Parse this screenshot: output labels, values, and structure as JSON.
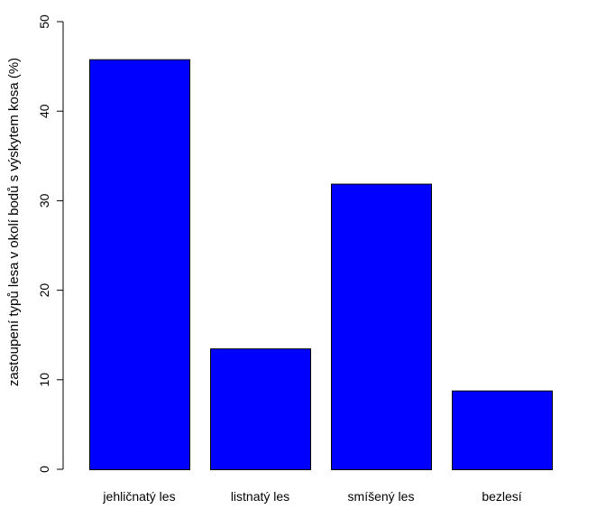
{
  "chart_data": {
    "type": "bar",
    "title": "",
    "xlabel": "",
    "ylabel": "zastoupení typů lesa v okolí bodů s výskytem kosa (%)",
    "categories": [
      "jehličnatý les",
      "listnatý les",
      "smíšený les",
      "bezlesí"
    ],
    "values": [
      45.8,
      13.5,
      31.9,
      8.8
    ],
    "ylim": [
      0,
      50
    ],
    "yticks": [
      0,
      10,
      20,
      30,
      40,
      50
    ],
    "grid": false,
    "legend": "none",
    "bar_color": "#0000ff",
    "bar_border_color": "#000000"
  }
}
